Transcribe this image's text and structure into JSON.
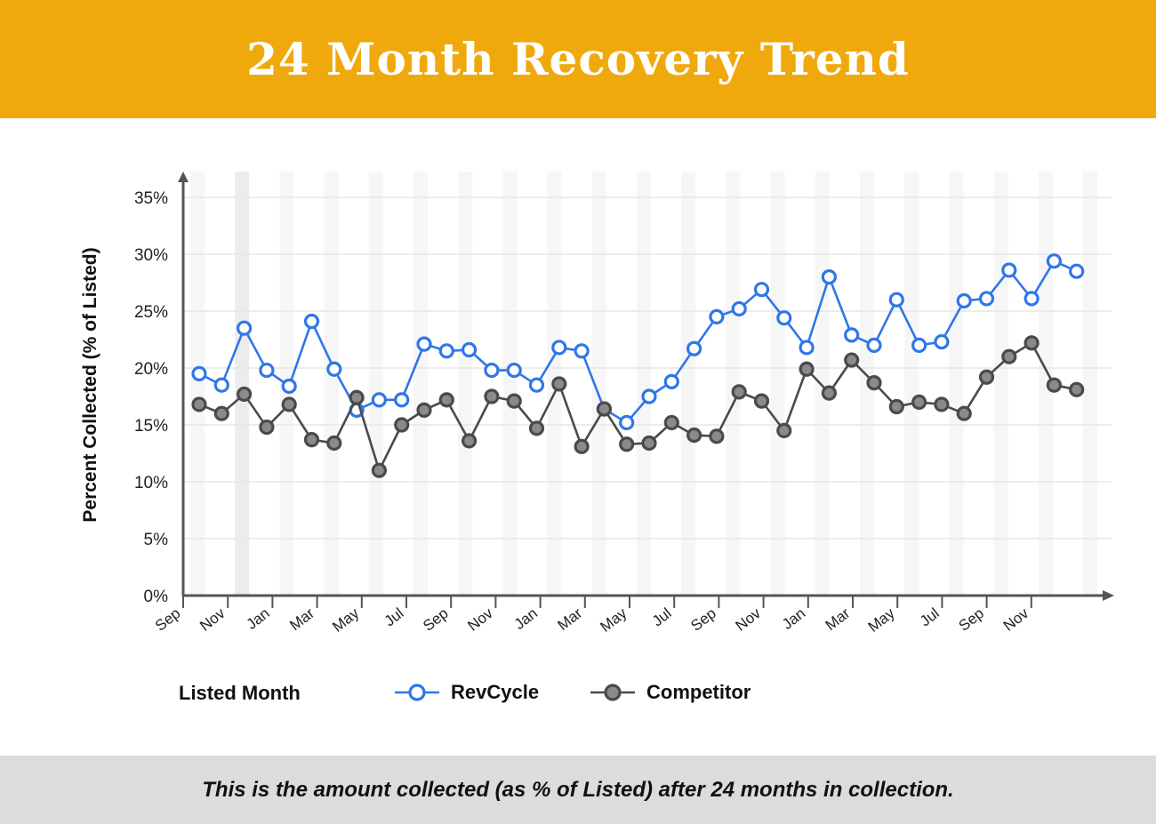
{
  "header": {
    "title": "24 Month Recovery Trend",
    "background_color": "#F0A90C"
  },
  "footer": {
    "note": "This is the amount collected (as % of Listed) after 24 months in collection.",
    "background_color": "#DCDCDC"
  },
  "chart_data": {
    "type": "line",
    "title": "24 Month Recovery Trend",
    "xlabel": "Listed Month",
    "ylabel": "Percent Collected (% of Listed)",
    "ylim": [
      0,
      35
    ],
    "y_ticks": [
      "0%",
      "5%",
      "10%",
      "15%",
      "20%",
      "25%",
      "30%",
      "35%"
    ],
    "x_tick_labels": [
      "Sep",
      "Nov",
      "Jan",
      "Mar",
      "May",
      "Jul",
      "Sep",
      "Nov",
      "Jan",
      "Mar",
      "May",
      "Jul",
      "Sep",
      "Nov",
      "Jan",
      "Mar",
      "May",
      "Jul",
      "Sep",
      "Nov"
    ],
    "grid": true,
    "legend_position": "bottom",
    "series": [
      {
        "name": "RevCycle",
        "color": "#2F76E9",
        "values": [
          19.5,
          18.5,
          23.5,
          19.8,
          18.4,
          24.1,
          19.9,
          16.3,
          17.2,
          17.2,
          22.1,
          21.5,
          21.6,
          19.8,
          19.8,
          18.5,
          21.8,
          21.5,
          16.4,
          15.2,
          17.5,
          18.8,
          21.7,
          24.5,
          25.2,
          26.9,
          24.4,
          21.8,
          28.0,
          22.9,
          22.0,
          26.0,
          22.0,
          22.3,
          25.9,
          26.1,
          28.6,
          26.1,
          29.4,
          28.5
        ]
      },
      {
        "name": "Competitor",
        "color": "#4A4A4A",
        "values": [
          16.8,
          16.0,
          17.7,
          14.8,
          16.8,
          13.7,
          13.4,
          17.4,
          11.0,
          15.0,
          16.3,
          17.2,
          13.6,
          17.5,
          17.1,
          14.7,
          18.6,
          13.1,
          16.4,
          13.3,
          13.4,
          15.2,
          14.1,
          14.0,
          17.9,
          17.1,
          14.5,
          19.9,
          17.8,
          20.7,
          18.7,
          16.6,
          17.0,
          16.8,
          16.0,
          19.2,
          21.0,
          22.2,
          18.5,
          18.1
        ]
      }
    ]
  }
}
